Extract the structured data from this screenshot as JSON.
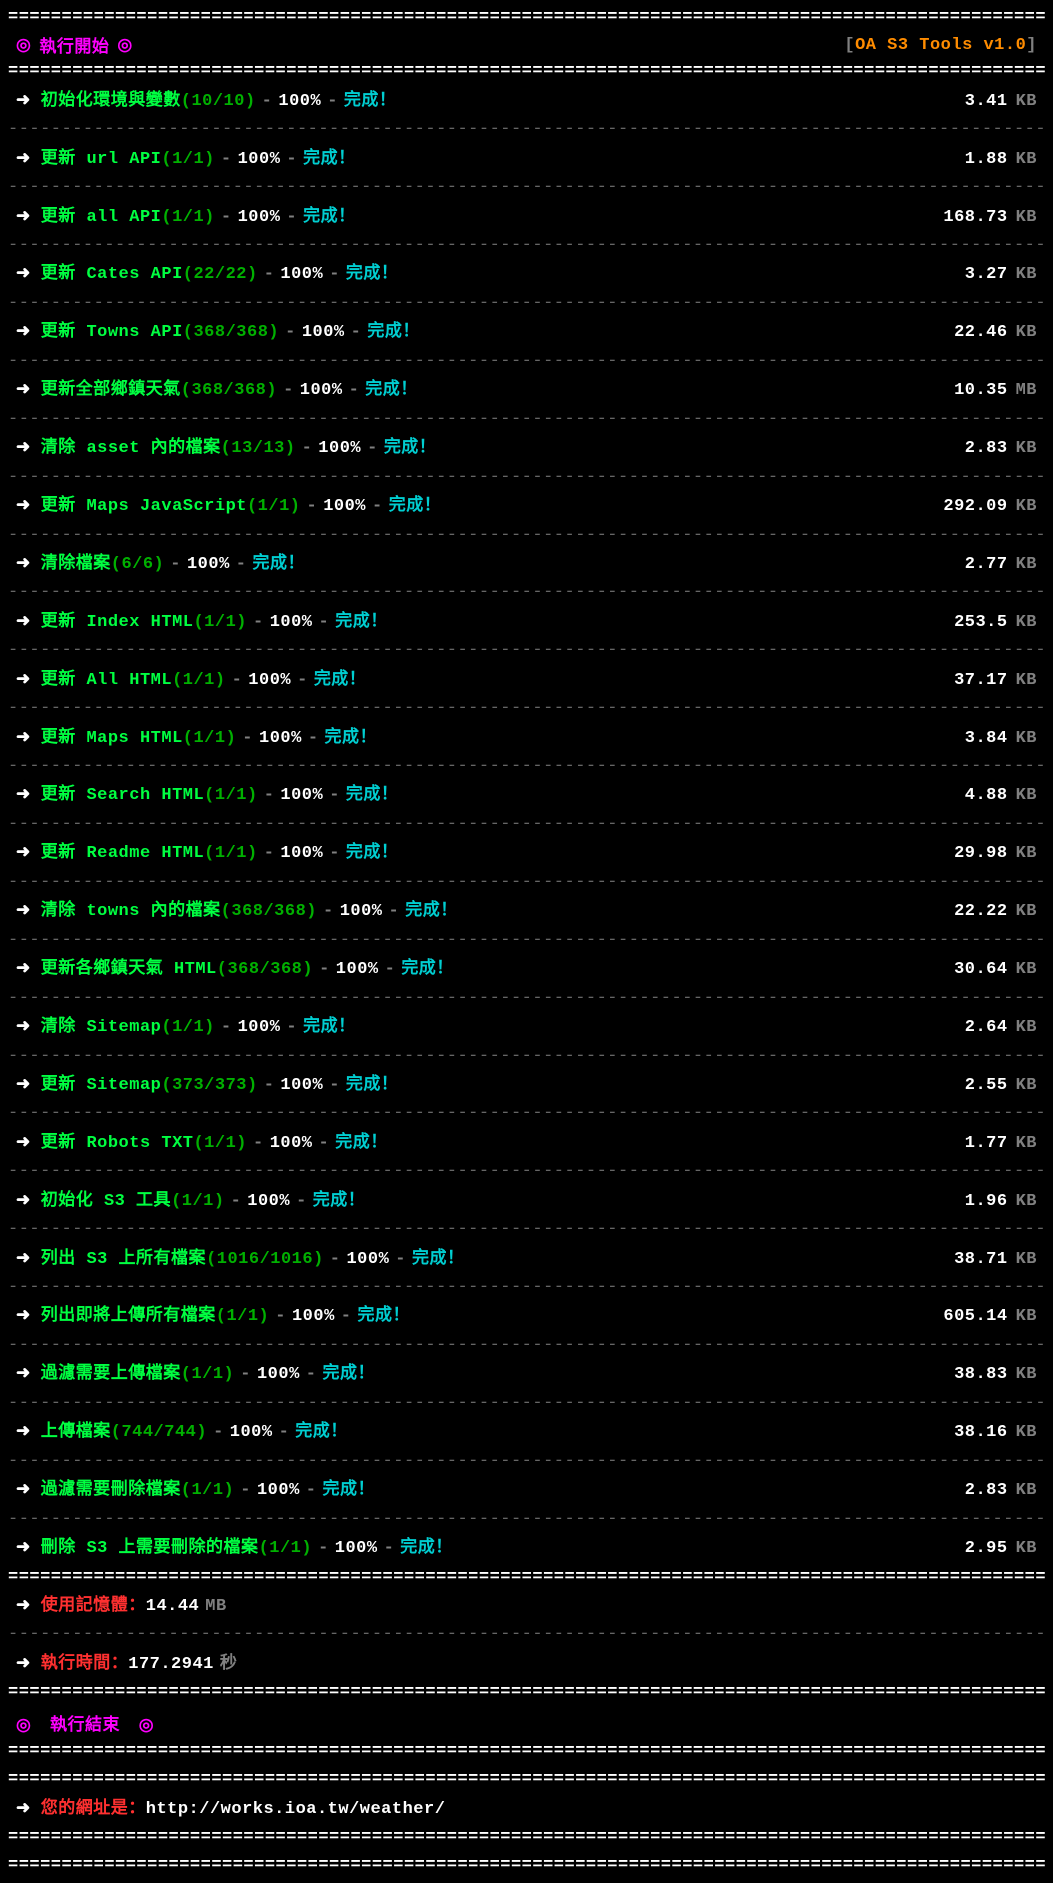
{
  "header": {
    "bullet": "◎",
    "title": "執行開始",
    "version_label": "OA S3 Tools v1.0"
  },
  "tasks": [
    {
      "name": "初始化環境與變數",
      "count": "10/10",
      "percent": "100%",
      "status": "完成！",
      "size": "3.41",
      "unit": "KB"
    },
    {
      "name": "更新 url API",
      "count": "1/1",
      "percent": "100%",
      "status": "完成！",
      "size": "1.88",
      "unit": "KB"
    },
    {
      "name": "更新 all API",
      "count": "1/1",
      "percent": "100%",
      "status": "完成！",
      "size": "168.73",
      "unit": "KB"
    },
    {
      "name": "更新 Cates API",
      "count": "22/22",
      "percent": "100%",
      "status": "完成！",
      "size": "3.27",
      "unit": "KB"
    },
    {
      "name": "更新 Towns API",
      "count": "368/368",
      "percent": "100%",
      "status": "完成！",
      "size": "22.46",
      "unit": "KB"
    },
    {
      "name": "更新全部鄉鎮天氣",
      "count": "368/368",
      "percent": "100%",
      "status": "完成！",
      "size": "10.35",
      "unit": "MB"
    },
    {
      "name": "清除 asset 內的檔案",
      "count": "13/13",
      "percent": "100%",
      "status": "完成！",
      "size": "2.83",
      "unit": "KB"
    },
    {
      "name": "更新 Maps JavaScript",
      "count": "1/1",
      "percent": "100%",
      "status": "完成！",
      "size": "292.09",
      "unit": "KB"
    },
    {
      "name": "清除檔案",
      "count": "6/6",
      "percent": "100%",
      "status": "完成！",
      "size": "2.77",
      "unit": "KB"
    },
    {
      "name": "更新 Index HTML",
      "count": "1/1",
      "percent": "100%",
      "status": "完成！",
      "size": "253.5",
      "unit": "KB"
    },
    {
      "name": "更新 All HTML",
      "count": "1/1",
      "percent": "100%",
      "status": "完成！",
      "size": "37.17",
      "unit": "KB"
    },
    {
      "name": "更新 Maps HTML",
      "count": "1/1",
      "percent": "100%",
      "status": "完成！",
      "size": "3.84",
      "unit": "KB"
    },
    {
      "name": "更新 Search HTML",
      "count": "1/1",
      "percent": "100%",
      "status": "完成！",
      "size": "4.88",
      "unit": "KB"
    },
    {
      "name": "更新 Readme HTML",
      "count": "1/1",
      "percent": "100%",
      "status": "完成！",
      "size": "29.98",
      "unit": "KB"
    },
    {
      "name": "清除 towns 內的檔案",
      "count": "368/368",
      "percent": "100%",
      "status": "完成！",
      "size": "22.22",
      "unit": "KB"
    },
    {
      "name": "更新各鄉鎮天氣 HTML",
      "count": "368/368",
      "percent": "100%",
      "status": "完成！",
      "size": "30.64",
      "unit": "KB"
    },
    {
      "name": "清除 Sitemap",
      "count": "1/1",
      "percent": "100%",
      "status": "完成！",
      "size": "2.64",
      "unit": "KB"
    },
    {
      "name": "更新 Sitemap",
      "count": "373/373",
      "percent": "100%",
      "status": "完成！",
      "size": "2.55",
      "unit": "KB"
    },
    {
      "name": "更新 Robots TXT",
      "count": "1/1",
      "percent": "100%",
      "status": "完成！",
      "size": "1.77",
      "unit": "KB"
    },
    {
      "name": "初始化 S3 工具",
      "count": "1/1",
      "percent": "100%",
      "status": "完成！",
      "size": "1.96",
      "unit": "KB"
    },
    {
      "name": "列出 S3 上所有檔案",
      "count": "1016/1016",
      "percent": "100%",
      "status": "完成！",
      "size": "38.71",
      "unit": "KB"
    },
    {
      "name": "列出即將上傳所有檔案",
      "count": "1/1",
      "percent": "100%",
      "status": "完成！",
      "size": "605.14",
      "unit": "KB"
    },
    {
      "name": "過濾需要上傳檔案",
      "count": "1/1",
      "percent": "100%",
      "status": "完成！",
      "size": "38.83",
      "unit": "KB"
    },
    {
      "name": "上傳檔案",
      "count": "744/744",
      "percent": "100%",
      "status": "完成！",
      "size": "38.16",
      "unit": "KB"
    },
    {
      "name": "過濾需要刪除檔案",
      "count": "1/1",
      "percent": "100%",
      "status": "完成！",
      "size": "2.83",
      "unit": "KB"
    },
    {
      "name": "刪除 S3 上需要刪除的檔案",
      "count": "1/1",
      "percent": "100%",
      "status": "完成！",
      "size": "2.95",
      "unit": "KB"
    }
  ],
  "memory": {
    "label": "使用記憶體：",
    "value": "14.44",
    "unit": "MB"
  },
  "time": {
    "label": "執行時間：",
    "value": "177.2941",
    "unit": "秒"
  },
  "footer": {
    "bullet": "◎",
    "title": "執行結束"
  },
  "url_info": {
    "label": "您的網址是：",
    "value": "http://works.ioa.tw/weather/"
  },
  "separators": {
    "thick": "==================================================================================================",
    "thin": "--------------------------------------------------------------------------------------------------"
  },
  "arrow": "➜",
  "sep_char": "-"
}
